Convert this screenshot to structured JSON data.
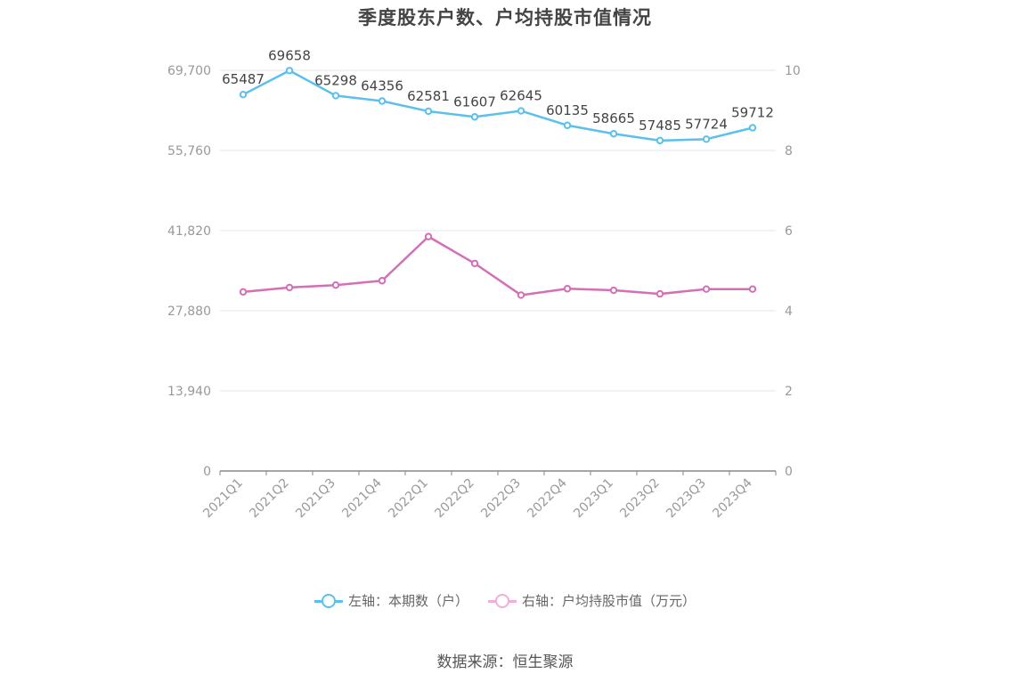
{
  "title": "季度股东户数、户均持股市值情况",
  "source": "数据来源：恒生聚源",
  "legend": {
    "left_label": "左轴：本期数（户）",
    "right_label": "右轴：户均持股市值（万元）"
  },
  "colors": {
    "left_series": "#5bc0eb",
    "right_series": "#d36fb8",
    "right_legend": "#f0aed8",
    "grid": "#e3e6f0",
    "axis": "#888888",
    "tick_text": "#999999"
  },
  "chart_data": {
    "type": "line",
    "title": "季度股东户数、户均持股市值情况",
    "categories": [
      "2021Q1",
      "2021Q2",
      "2021Q3",
      "2021Q4",
      "2022Q1",
      "2022Q2",
      "2022Q3",
      "2022Q4",
      "2023Q1",
      "2023Q2",
      "2023Q3",
      "2023Q4"
    ],
    "left_axis": {
      "ticks": [
        "0",
        "13,940",
        "27,880",
        "41,820",
        "55,760",
        "69,700"
      ],
      "ylim": [
        0,
        69700
      ]
    },
    "right_axis": {
      "ticks": [
        "0",
        "2",
        "4",
        "6",
        "8",
        "10"
      ],
      "ylim": [
        0,
        10
      ]
    },
    "series": [
      {
        "name": "左轴：本期数（户）",
        "axis": "left",
        "values": [
          65487,
          69658,
          65298,
          64356,
          62581,
          61607,
          62645,
          60135,
          58665,
          57485,
          57724,
          59712
        ],
        "labels": [
          "65487",
          "69658",
          "65298",
          "64356",
          "62581",
          "61607",
          "62645",
          "60135",
          "58665",
          "57485",
          "57724",
          "59712"
        ]
      },
      {
        "name": "右轴：户均持股市值（万元）",
        "axis": "right",
        "values": [
          4.47,
          4.58,
          4.64,
          4.75,
          5.85,
          5.18,
          4.39,
          4.55,
          4.51,
          4.42,
          4.54,
          4.54
        ]
      }
    ],
    "grid": true,
    "legend_position": "bottom"
  }
}
